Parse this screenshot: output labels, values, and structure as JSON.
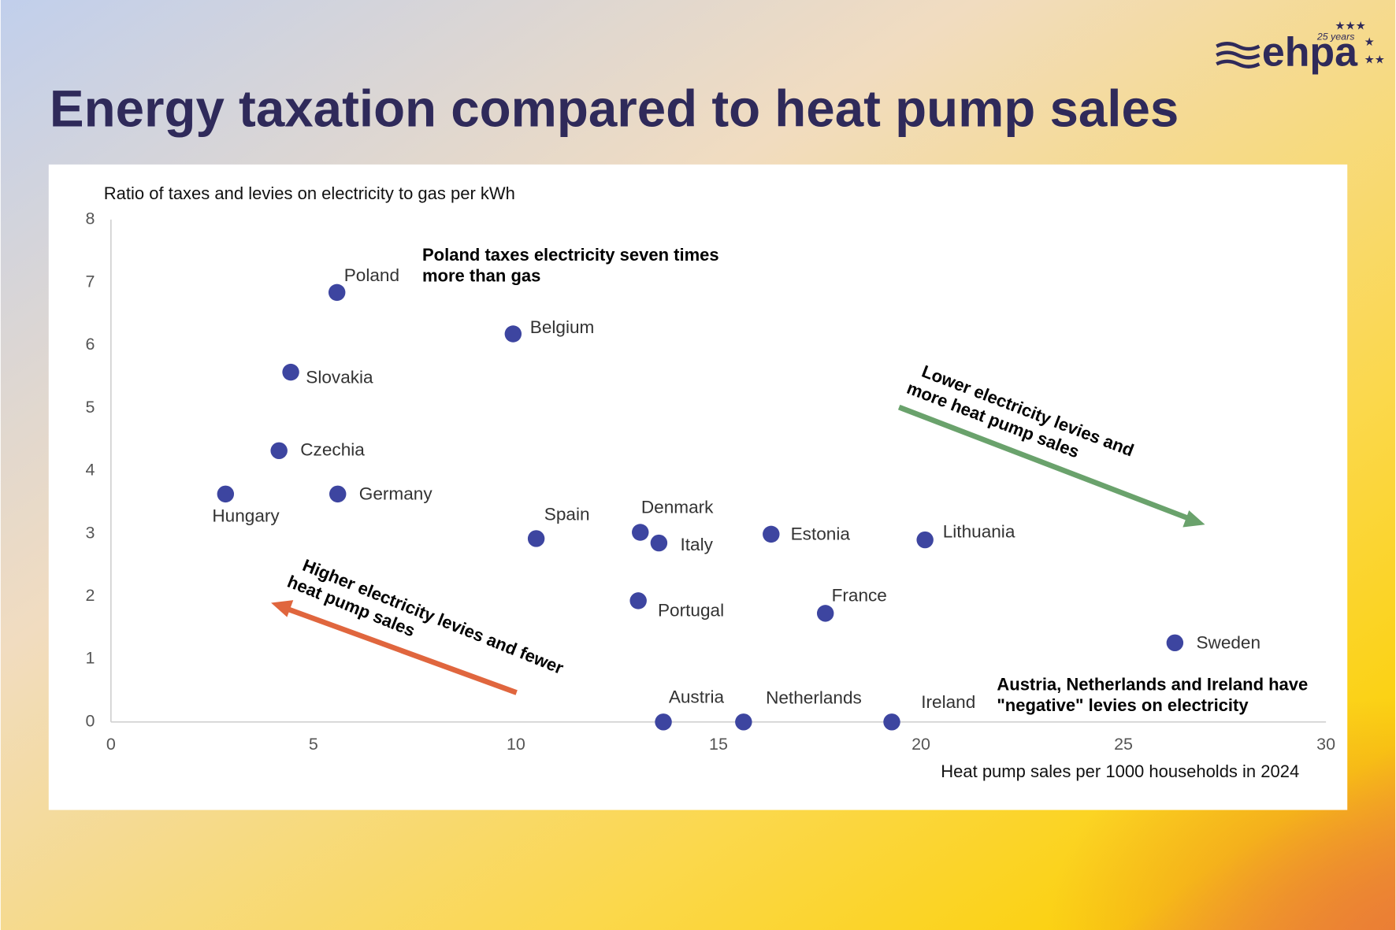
{
  "logo": {
    "name": "ehpa",
    "tagline": "25 years"
  },
  "chart_data": {
    "type": "scatter",
    "title": "Energy taxation compared to heat pump sales",
    "y_label": "Ratio of taxes and levies on electricity to gas per kWh",
    "x_label": "Heat pump sales per 1000 households in 2024",
    "labels": [
      "Poland",
      "Belgium",
      "Slovakia",
      "Czechia",
      "Hungary",
      "Germany",
      "Spain",
      "Denmark",
      "Italy",
      "Estonia",
      "Lithuania",
      "Portugal",
      "France",
      "Sweden",
      "Austria",
      "Netherlands",
      "Ireland"
    ],
    "x": [
      5.58,
      9.93,
      4.44,
      4.15,
      2.83,
      5.6,
      10.5,
      13.07,
      13.53,
      16.3,
      20.1,
      13.02,
      17.64,
      26.27,
      13.64,
      15.62,
      19.28
    ],
    "values": [
      6.84,
      6.18,
      5.57,
      4.32,
      3.63,
      3.63,
      2.92,
      3.02,
      2.85,
      2.99,
      2.9,
      1.93,
      1.73,
      1.26,
      0,
      0,
      0
    ],
    "color": "#3d45a0",
    "xlim": [
      0,
      30
    ],
    "xticks": [
      0,
      5,
      10,
      15,
      20,
      25,
      30
    ],
    "ylim": [
      0,
      8
    ],
    "yticks": [
      0,
      1,
      2,
      3,
      4,
      5,
      6,
      7,
      8
    ],
    "grid": false,
    "annotations": [
      {
        "lines": [
          "Poland taxes electricity seven times",
          "more than gas"
        ]
      },
      {
        "lines": [
          "Lower electricity levies and",
          "more heat pump sales"
        ]
      },
      {
        "lines": [
          "Higher electricity levies and fewer",
          "heat pump sales"
        ]
      },
      {
        "lines": [
          "Austria, Netherlands and Ireland have",
          "\"negative\" levies on electricity"
        ]
      }
    ]
  }
}
